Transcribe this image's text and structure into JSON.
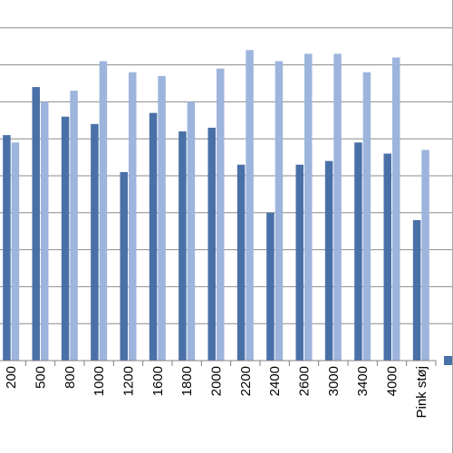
{
  "chart_data": {
    "type": "bar",
    "categories": [
      "200",
      "500",
      "800",
      "1000",
      "1200",
      "1600",
      "1800",
      "2000",
      "2200",
      "2400",
      "2600",
      "3000",
      "3400",
      "4000",
      "Pink støj"
    ],
    "series": [
      {
        "values": [
          6.1,
          7.4,
          6.6,
          6.4,
          5.1,
          6.7,
          6.2,
          6.3,
          5.3,
          4.0,
          5.3,
          5.4,
          5.9,
          5.6,
          3.8
        ]
      },
      {
        "values": [
          5.9,
          7.0,
          7.3,
          8.1,
          7.8,
          7.7,
          7.0,
          7.9,
          8.4,
          8.1,
          8.3,
          8.3,
          7.8,
          8.2,
          5.7
        ]
      }
    ],
    "ylim": [
      0,
      10
    ],
    "grid": true,
    "colors": {
      "series_1": "#4a70a8",
      "series_2": "#9db5dc",
      "grid": "#8c8c8c",
      "axis": "#808080"
    }
  }
}
